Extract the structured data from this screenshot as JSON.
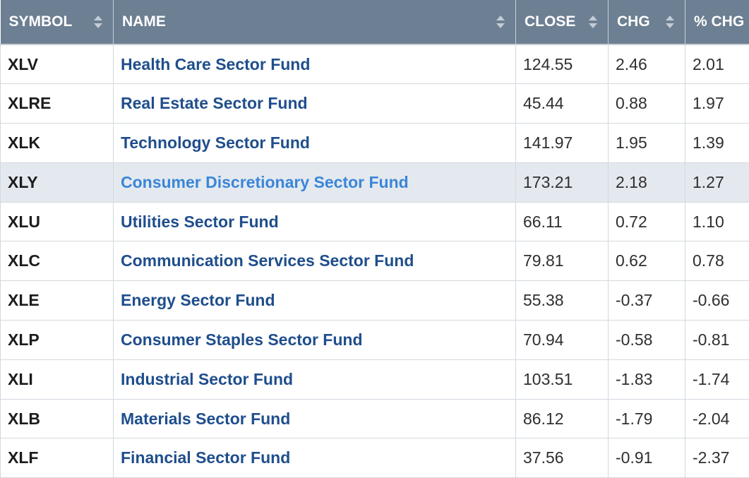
{
  "columns": [
    {
      "key": "symbol",
      "label": "SYMBOL",
      "sortable": true
    },
    {
      "key": "name",
      "label": "NAME",
      "sortable": true
    },
    {
      "key": "close",
      "label": "CLOSE",
      "sortable": true
    },
    {
      "key": "chg",
      "label": "CHG",
      "sortable": true
    },
    {
      "key": "pct_chg",
      "label": "% CHG",
      "sortable": false
    }
  ],
  "rows": [
    {
      "symbol": "XLV",
      "name": "Health Care Sector Fund",
      "close": "124.55",
      "chg": "2.46",
      "pct_chg": "2.01"
    },
    {
      "symbol": "XLRE",
      "name": "Real Estate Sector Fund",
      "close": "45.44",
      "chg": "0.88",
      "pct_chg": "1.97"
    },
    {
      "symbol": "XLK",
      "name": "Technology Sector Fund",
      "close": "141.97",
      "chg": "1.95",
      "pct_chg": "1.39"
    },
    {
      "symbol": "XLY",
      "name": "Consumer Discretionary Sector Fund",
      "close": "173.21",
      "chg": "2.18",
      "pct_chg": "1.27",
      "hovered": true
    },
    {
      "symbol": "XLU",
      "name": "Utilities Sector Fund",
      "close": "66.11",
      "chg": "0.72",
      "pct_chg": "1.10"
    },
    {
      "symbol": "XLC",
      "name": "Communication Services Sector Fund",
      "close": "79.81",
      "chg": "0.62",
      "pct_chg": "0.78"
    },
    {
      "symbol": "XLE",
      "name": "Energy Sector Fund",
      "close": "55.38",
      "chg": "-0.37",
      "pct_chg": "-0.66"
    },
    {
      "symbol": "XLP",
      "name": "Consumer Staples Sector Fund",
      "close": "70.94",
      "chg": "-0.58",
      "pct_chg": "-0.81"
    },
    {
      "symbol": "XLI",
      "name": "Industrial Sector Fund",
      "close": "103.51",
      "chg": "-1.83",
      "pct_chg": "-1.74"
    },
    {
      "symbol": "XLB",
      "name": "Materials Sector Fund",
      "close": "86.12",
      "chg": "-1.79",
      "pct_chg": "-2.04"
    },
    {
      "symbol": "XLF",
      "name": "Financial Sector Fund",
      "close": "37.56",
      "chg": "-0.91",
      "pct_chg": "-2.37"
    }
  ],
  "colors": {
    "header_bg": "#6d7f92",
    "link": "#1f4e8c",
    "link_hover": "#3a86d8",
    "row_hover_bg": "#e4e9ef"
  }
}
